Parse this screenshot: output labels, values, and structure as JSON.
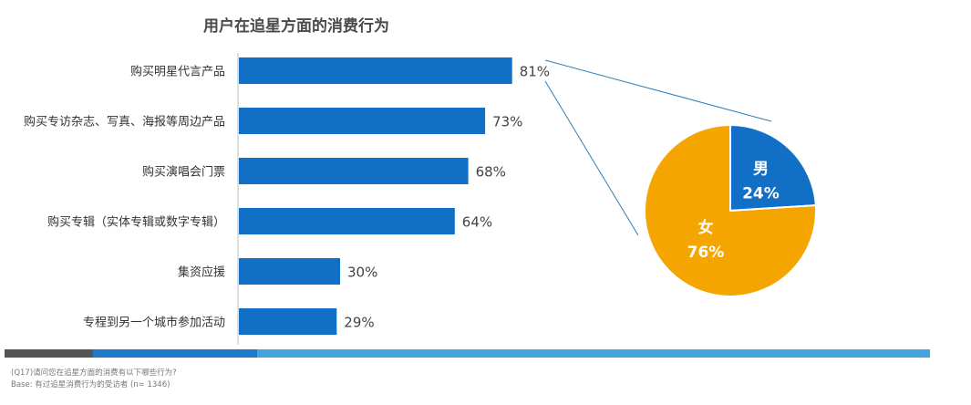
{
  "chart_data": [
    {
      "type": "bar",
      "orientation": "horizontal",
      "title": "用户在追星方面的消费行为",
      "categories": [
        "购买明星代言产品",
        "购买专访杂志、写真、海报等周边产品",
        "购买演唱会门票",
        "购买专辑（实体专辑或数字专辑）",
        "集资应援",
        "专程到另一个城市参加活动"
      ],
      "values": [
        81,
        73,
        68,
        64,
        30,
        29
      ],
      "value_labels": [
        "81%",
        "73%",
        "68%",
        "64%",
        "30%",
        "29%"
      ],
      "xlim": [
        0,
        100
      ],
      "bar_color": "#1170c6"
    },
    {
      "type": "pie",
      "slices": [
        {
          "label": "男",
          "value": 24,
          "value_label": "24%",
          "color": "#1170c6"
        },
        {
          "label": "女",
          "value": 76,
          "value_label": "76%",
          "color": "#f5a500"
        }
      ]
    }
  ],
  "footnote": {
    "question": "(Q17)请问您在追星方面的消费有以下哪些行为?",
    "base": "Base: 有过追星消费行为的受访者 (n= 1346)"
  }
}
